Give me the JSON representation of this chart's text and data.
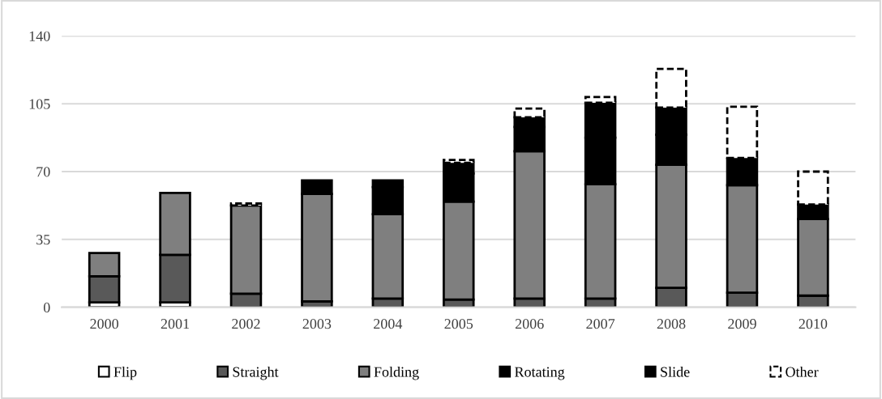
{
  "chart_data": {
    "type": "bar",
    "stacked": true,
    "categories": [
      "2000",
      "2001",
      "2002",
      "2003",
      "2004",
      "2005",
      "2006",
      "2007",
      "2008",
      "2009",
      "2010"
    ],
    "series": [
      {
        "name": "Flip",
        "color": "#ffffff",
        "values": [
          2.5,
          2.5,
          null,
          null,
          null,
          null,
          null,
          null,
          null,
          null,
          null
        ]
      },
      {
        "name": "Straight",
        "color": "#595959",
        "values": [
          13.5,
          24.5,
          7,
          3,
          4.5,
          4,
          4.5,
          4.5,
          10,
          7.5,
          6
        ]
      },
      {
        "name": "Folding",
        "color": "#7f7f7f",
        "values": [
          12,
          32,
          45.5,
          55.5,
          43.5,
          50.5,
          76,
          59,
          63.5,
          55.5,
          39.5
        ]
      },
      {
        "name": "Rotating",
        "color": "#000000",
        "values": [
          null,
          null,
          null,
          7,
          14,
          14.5,
          12.5,
          24,
          15.5,
          14,
          7.5
        ]
      },
      {
        "name": "Slide",
        "color": "#000000",
        "values": [
          null,
          null,
          null,
          null,
          3.5,
          5.5,
          5,
          18,
          14,
          null,
          null
        ]
      },
      {
        "name": "Other",
        "color": "#ffffff",
        "line_style": "dashed",
        "values": [
          null,
          null,
          1,
          null,
          null,
          1.5,
          4.5,
          3,
          20,
          26.5,
          17
        ]
      }
    ],
    "ylim": [
      0,
      140
    ],
    "yticks": [
      0,
      35,
      70,
      105,
      140
    ],
    "grid": "y",
    "legend": "bottom"
  }
}
